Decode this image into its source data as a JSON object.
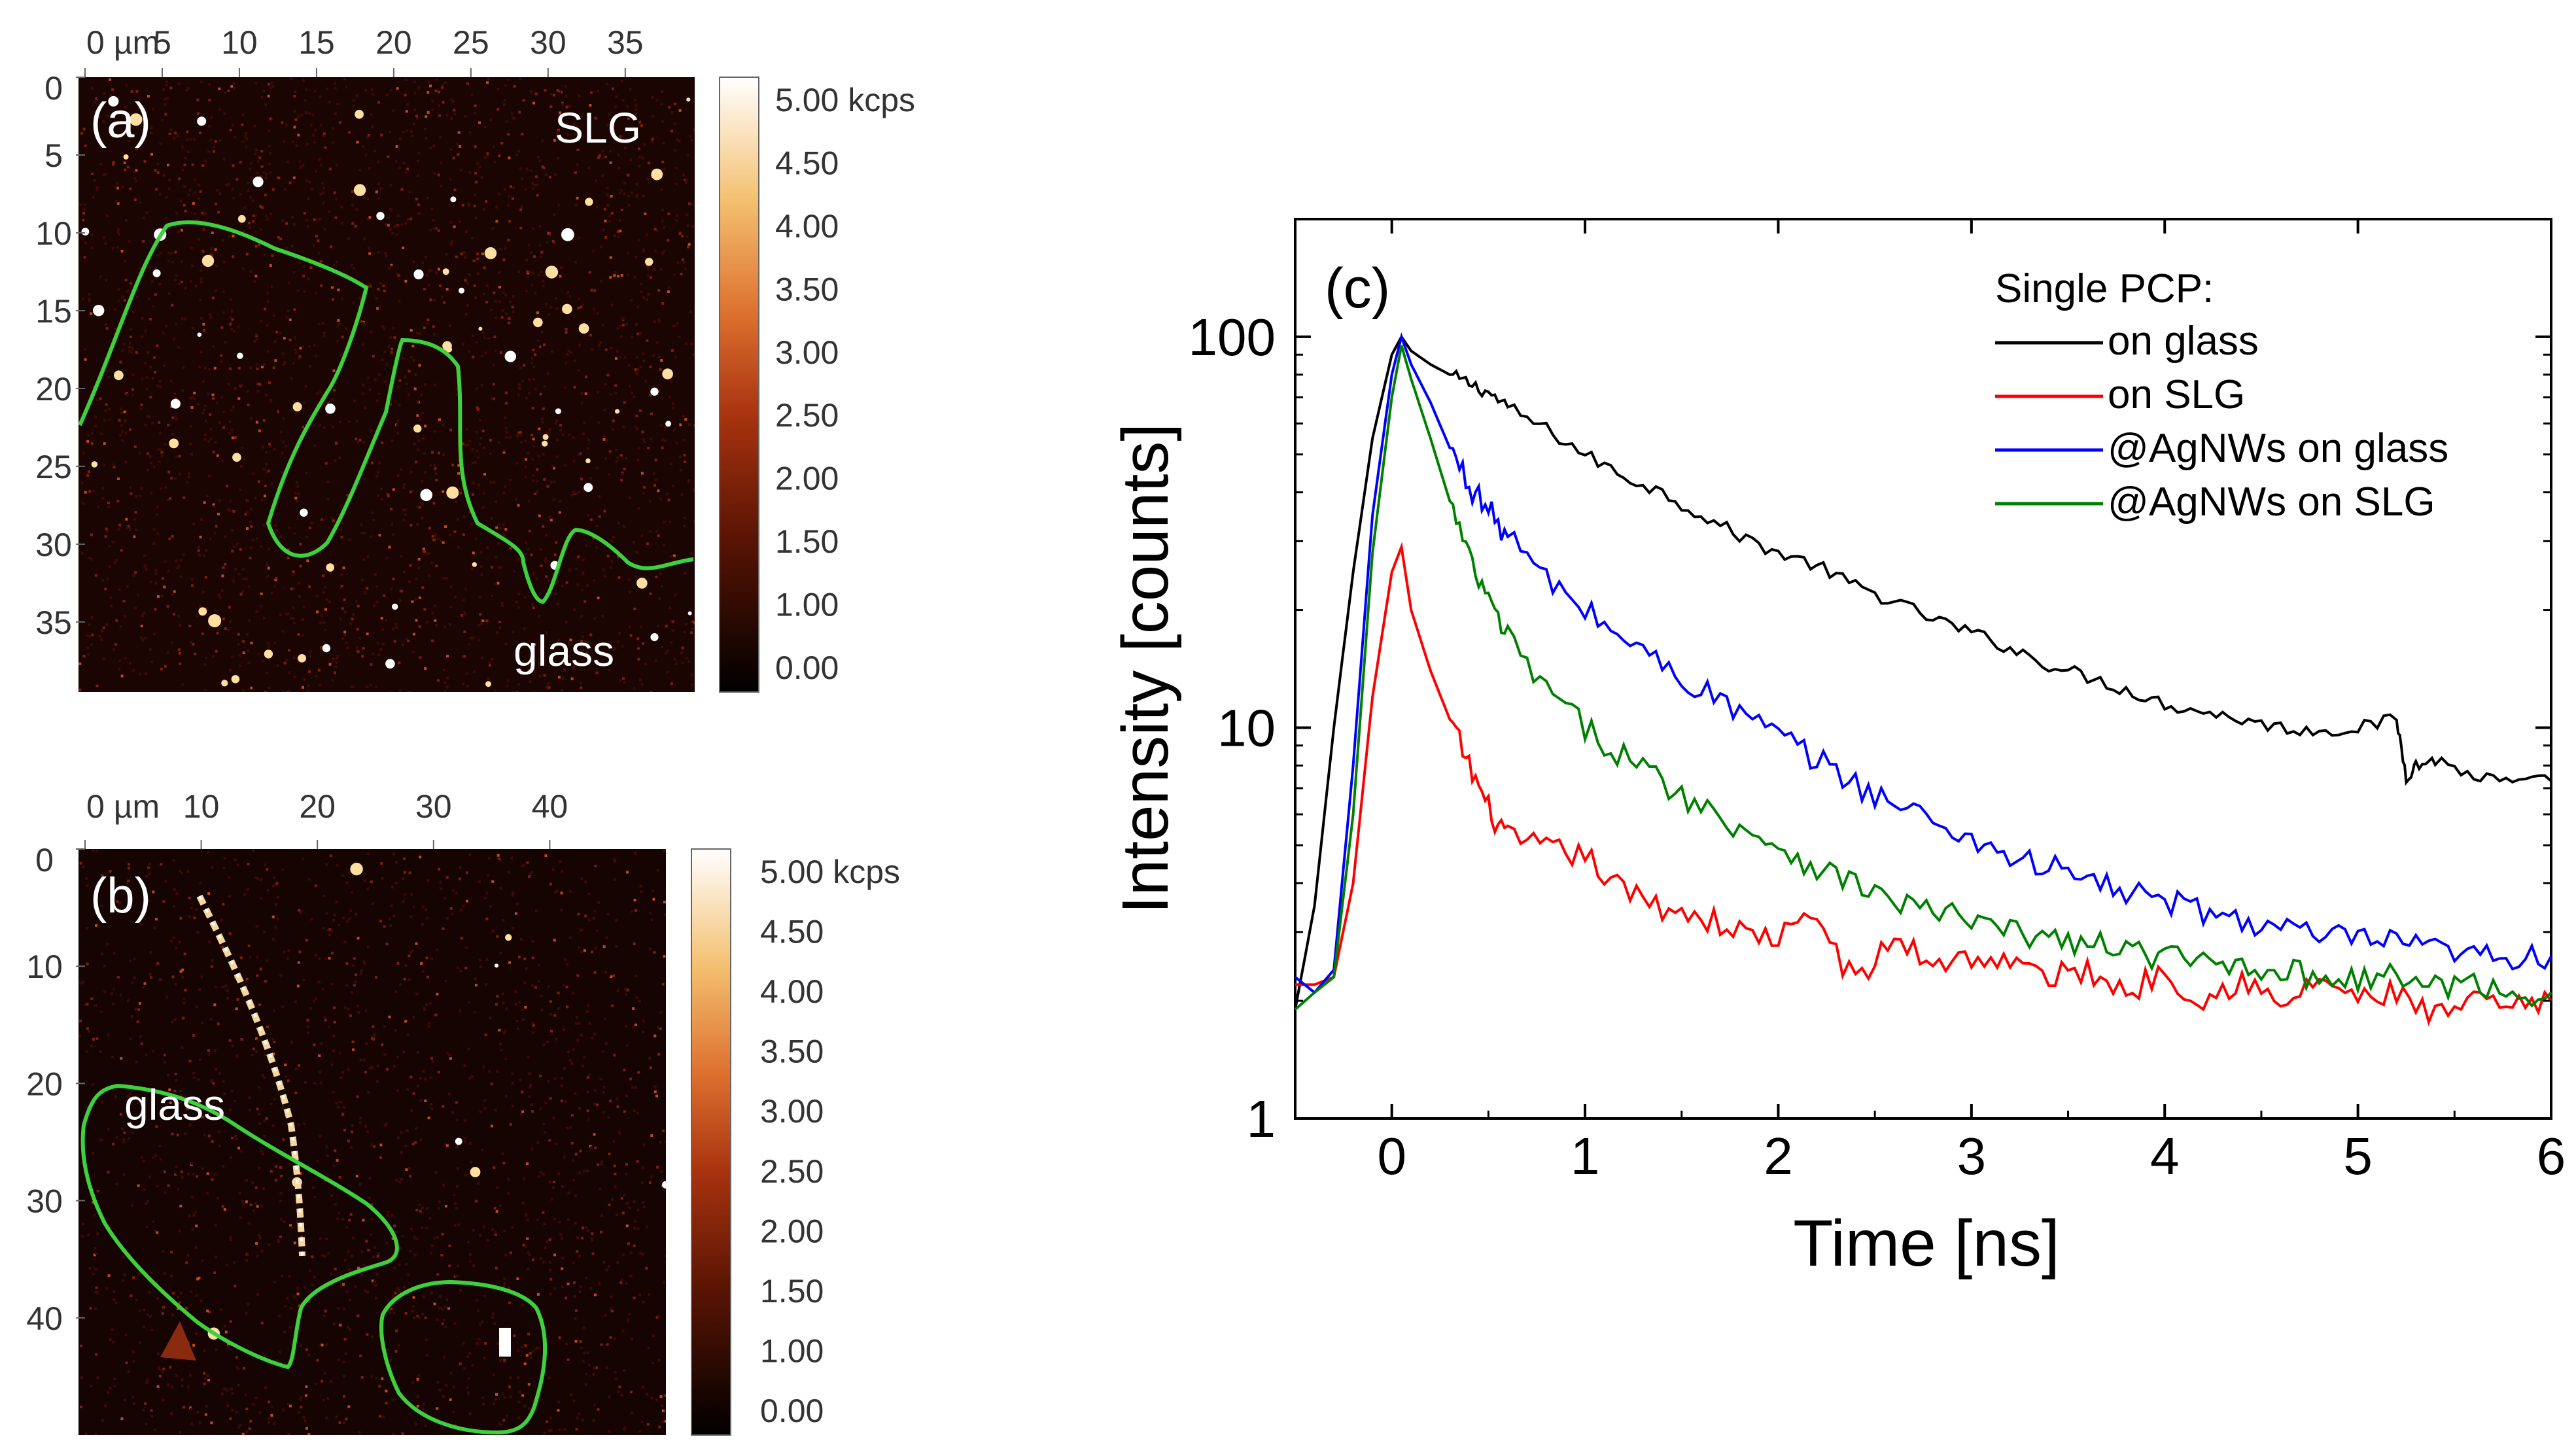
{
  "panels": {
    "a": {
      "label": "(a)",
      "x_ticks": [
        "0 µm",
        "5",
        "10",
        "15",
        "20",
        "25",
        "30",
        "35"
      ],
      "y_ticks": [
        "0",
        "5",
        "10",
        "15",
        "20",
        "25",
        "30",
        "35"
      ],
      "colorbar_ticks": [
        "5.00 kcps",
        "4.50",
        "4.00",
        "3.50",
        "3.00",
        "2.50",
        "2.00",
        "1.50",
        "1.00",
        "0.00"
      ],
      "annotations": [
        "SLG",
        "glass"
      ]
    },
    "b": {
      "label": "(b)",
      "x_ticks": [
        "0 µm",
        "10",
        "20",
        "30",
        "40"
      ],
      "y_ticks": [
        "0",
        "10",
        "20",
        "30",
        "40"
      ],
      "colorbar_ticks": [
        "5.00 kcps",
        "4.50",
        "4.00",
        "3.50",
        "3.00",
        "2.50",
        "2.00",
        "1.50",
        "1.00",
        "0.00"
      ],
      "annotations": [
        "glass"
      ]
    }
  },
  "colors": {
    "map_dark": "#1a0502",
    "map_mid": "#b43c14",
    "map_bright": "#ffe9a8",
    "outline": "#3ed13e",
    "on_glass": "#000000",
    "on_slg": "#ff0000",
    "agnw_glass": "#0000ff",
    "agnw_slg": "#008000"
  },
  "chart_data": {
    "type": "line",
    "panel_label": "(c)",
    "xlabel": "Time [ns]",
    "ylabel": "Intensity [counts]",
    "xlim": [
      -0.5,
      6
    ],
    "ylim": [
      1,
      200
    ],
    "yscale": "log",
    "x_ticks": [
      "0",
      "1",
      "2",
      "3",
      "4",
      "5",
      "6"
    ],
    "y_ticks": [
      "1",
      "10",
      "100"
    ],
    "legend_title": "Single PCP:",
    "legend_position": "top-right",
    "series": [
      {
        "name": "on glass",
        "color": "#000000",
        "x": [
          -0.5,
          -0.4,
          -0.3,
          -0.2,
          -0.1,
          0.0,
          0.05,
          0.1,
          0.2,
          0.3,
          0.4,
          0.5,
          0.6,
          0.8,
          1.0,
          1.2,
          1.4,
          1.6,
          1.8,
          2.0,
          2.2,
          2.4,
          2.6,
          2.8,
          3.0,
          3.2,
          3.4,
          3.6,
          3.8,
          4.0,
          4.2,
          4.4,
          4.6,
          4.8,
          5.0,
          5.2,
          5.25,
          5.3,
          5.4,
          5.6,
          5.8,
          6.0
        ],
        "y": [
          1.9,
          3.5,
          10,
          25,
          55,
          90,
          100,
          92,
          85,
          80,
          76,
          72,
          66,
          58,
          50,
          44,
          40,
          35,
          31,
          28,
          26,
          23,
          21,
          19,
          17.5,
          16,
          14.5,
          13.5,
          12.5,
          11.5,
          11,
          10.5,
          10,
          9.8,
          10,
          10.5,
          7.5,
          8,
          8.3,
          7.5,
          7.2,
          7.3
        ]
      },
      {
        "name": "on SLG",
        "color": "#ff0000",
        "x": [
          -0.5,
          -0.4,
          -0.3,
          -0.2,
          -0.1,
          0.0,
          0.05,
          0.1,
          0.2,
          0.3,
          0.4,
          0.5,
          0.6,
          0.8,
          1.0,
          1.2,
          1.4,
          1.6,
          1.8,
          2.0,
          2.2,
          2.4,
          2.6,
          2.8,
          3.0,
          3.2,
          3.4,
          3.6,
          3.8,
          4.0,
          4.2,
          4.4,
          4.6,
          4.8,
          5.0,
          5.2,
          5.4,
          5.6,
          5.8,
          6.0
        ],
        "y": [
          2.2,
          2.2,
          2.3,
          4,
          12,
          25,
          29,
          20,
          14,
          10.5,
          8,
          6.2,
          5.2,
          4.9,
          4.7,
          3.8,
          3.5,
          3.3,
          3.0,
          2.9,
          3.3,
          2.2,
          2.9,
          2.5,
          2.6,
          2.5,
          2.3,
          2.4,
          2.1,
          2.4,
          2.0,
          2.3,
          1.9,
          2.3,
          2.0,
          2.1,
          1.8,
          2.0,
          1.9,
          2.0
        ]
      },
      {
        "name": "@AgNWs on glass",
        "color": "#0000ff",
        "x": [
          -0.5,
          -0.4,
          -0.3,
          -0.2,
          -0.1,
          0.0,
          0.05,
          0.1,
          0.2,
          0.3,
          0.4,
          0.5,
          0.6,
          0.8,
          1.0,
          1.2,
          1.4,
          1.6,
          1.8,
          2.0,
          2.2,
          2.4,
          2.6,
          2.8,
          3.0,
          3.2,
          3.4,
          3.6,
          3.8,
          4.0,
          4.2,
          4.4,
          4.6,
          4.8,
          5.0,
          5.2,
          5.4,
          5.6,
          5.8,
          6.0
        ],
        "y": [
          2.3,
          2.1,
          2.4,
          8,
          35,
          80,
          100,
          85,
          68,
          52,
          42,
          36,
          31,
          24,
          20,
          17,
          14.5,
          12.5,
          11,
          9.5,
          8.3,
          7.2,
          6.4,
          5.8,
          5.2,
          4.7,
          4.4,
          4.1,
          3.8,
          3.6,
          3.4,
          3.2,
          3.1,
          2.9,
          2.9,
          2.8,
          2.7,
          2.6,
          2.6,
          2.6
        ]
      },
      {
        "name": "@AgNWs on SLG",
        "color": "#008000",
        "x": [
          -0.5,
          -0.4,
          -0.3,
          -0.2,
          -0.1,
          0.0,
          0.05,
          0.1,
          0.2,
          0.3,
          0.4,
          0.5,
          0.6,
          0.8,
          1.0,
          1.2,
          1.4,
          1.6,
          1.8,
          2.0,
          2.2,
          2.4,
          2.6,
          2.8,
          3.0,
          3.2,
          3.4,
          3.6,
          3.8,
          4.0,
          4.2,
          4.4,
          4.6,
          4.8,
          5.0,
          5.2,
          5.4,
          5.6,
          5.8,
          6.0
        ],
        "y": [
          1.9,
          2.1,
          2.3,
          6,
          28,
          70,
          95,
          78,
          55,
          38,
          27,
          21,
          17,
          12.5,
          10,
          8.5,
          7.3,
          6.3,
          5.6,
          5.0,
          4.4,
          4.0,
          3.6,
          3.4,
          3.2,
          3.0,
          2.9,
          2.8,
          2.7,
          2.6,
          2.5,
          2.5,
          2.4,
          2.3,
          2.3,
          2.3,
          2.2,
          2.2,
          2.1,
          2.1
        ]
      }
    ]
  }
}
